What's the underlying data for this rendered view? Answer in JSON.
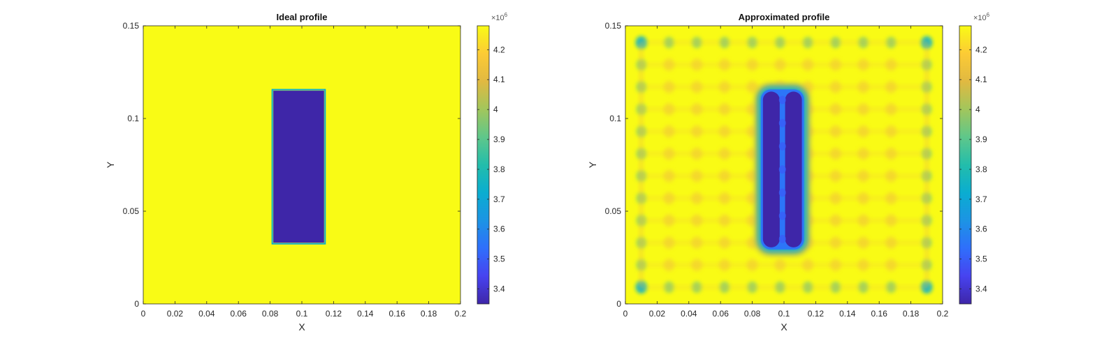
{
  "colormap": [
    "#3e26a8",
    "#4743f0",
    "#2f6ffb",
    "#1c94e4",
    "#0aadd0",
    "#23bdab",
    "#5fc78a",
    "#a2c65c",
    "#e1b941",
    "#fccb35",
    "#f9fb15"
  ],
  "chart_data": [
    {
      "type": "heatmap",
      "title": "Ideal profile",
      "xlabel": "X",
      "ylabel": "Y",
      "xlim": [
        0,
        0.2
      ],
      "ylim": [
        0,
        0.15
      ],
      "xticks": [
        0,
        0.02,
        0.04,
        0.06,
        0.08,
        0.1,
        0.12,
        0.14,
        0.16,
        0.18,
        0.2
      ],
      "xtick_labels": [
        "0",
        "0.02",
        "0.04",
        "0.06",
        "0.08",
        "0.1",
        "0.12",
        "0.14",
        "0.16",
        "0.18",
        "0.2"
      ],
      "yticks": [
        0,
        0.05,
        0.1,
        0.15
      ],
      "ytick_labels": [
        "0",
        "0.05",
        "0.1",
        "0.15"
      ],
      "background_value": 4.28,
      "inclusion": {
        "x": [
          0.082,
          0.114
        ],
        "y": [
          0.033,
          0.115
        ],
        "value": 3.35
      },
      "colorbar": {
        "exponent_label": "×10",
        "exponent": "6",
        "clim": [
          3.35,
          4.28
        ],
        "ticks": [
          3.4,
          3.5,
          3.6,
          3.7,
          3.8,
          3.9,
          4,
          4.1,
          4.2
        ],
        "tick_labels": [
          "3.4",
          "3.5",
          "3.6",
          "3.7",
          "3.8",
          "3.9",
          "4",
          "4.1",
          "4.2"
        ]
      }
    },
    {
      "type": "heatmap",
      "title": "Approximated profile",
      "xlabel": "X",
      "ylabel": "Y",
      "xlim": [
        0,
        0.2
      ],
      "ylim": [
        0,
        0.15
      ],
      "xticks": [
        0,
        0.02,
        0.04,
        0.06,
        0.08,
        0.1,
        0.12,
        0.14,
        0.16,
        0.18,
        0.2
      ],
      "xtick_labels": [
        "0",
        "0.02",
        "0.04",
        "0.06",
        "0.08",
        "0.1",
        "0.12",
        "0.14",
        "0.16",
        "0.18",
        "0.2"
      ],
      "yticks": [
        0,
        0.05,
        0.1,
        0.15
      ],
      "ytick_labels": [
        "0",
        "0.05",
        "0.1",
        "0.15"
      ],
      "background_value": 4.28,
      "blob_grid_x": [
        0.01,
        0.0275,
        0.045,
        0.0625,
        0.08,
        0.0975,
        0.115,
        0.1325,
        0.15,
        0.1675,
        0.19
      ],
      "blob_grid_y": [
        0.009,
        0.021,
        0.033,
        0.045,
        0.057,
        0.069,
        0.081,
        0.093,
        0.105,
        0.117,
        0.129,
        0.141
      ],
      "edge_blob_value": 3.95,
      "corner_blob_value": 3.75,
      "interior_blob_value": 4.15,
      "inclusion_columns": [
        {
          "x": 0.092,
          "y": [
            0.035,
            0.11
          ],
          "value": 3.35
        },
        {
          "x": 0.106,
          "y": [
            0.035,
            0.11
          ],
          "value": 3.35
        }
      ],
      "colorbar": {
        "exponent_label": "×10",
        "exponent": "6",
        "clim": [
          3.35,
          4.28
        ],
        "ticks": [
          3.4,
          3.5,
          3.6,
          3.7,
          3.8,
          3.9,
          4,
          4.1,
          4.2
        ],
        "tick_labels": [
          "3.4",
          "3.5",
          "3.6",
          "3.7",
          "3.8",
          "3.9",
          "4",
          "4.1",
          "4.2"
        ]
      }
    }
  ]
}
